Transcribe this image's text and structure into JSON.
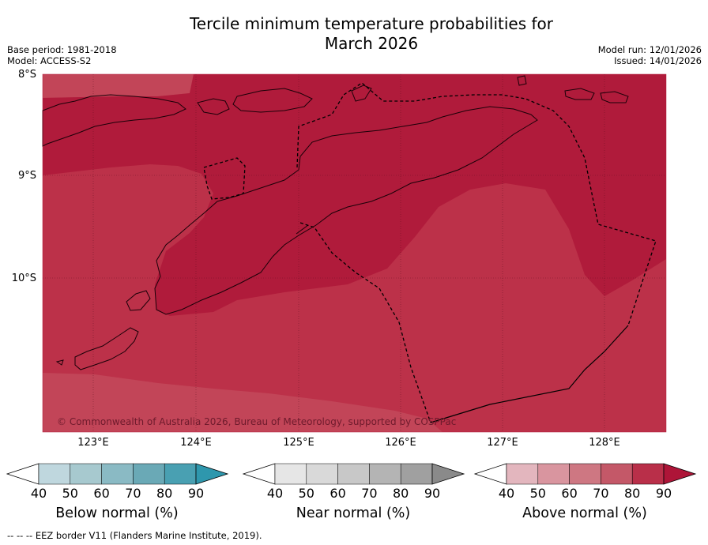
{
  "title_line1": "Tercile minimum temperature probabilities for",
  "title_line2": "March 2026",
  "base_period": "Base period: 1981-2018",
  "model": "Model: ACCESS-S2",
  "model_run": "Model run: 12/01/2026",
  "issued": "Issued: 14/01/2026",
  "lat_labels": [
    "8°S",
    "9°S",
    "10°S"
  ],
  "lon_labels": [
    "123°E",
    "124°E",
    "125°E",
    "126°E",
    "127°E",
    "128°E"
  ],
  "copyright": "© Commonwealth of Australia 2026, Bureau of Meteorology, supported by COSPPac",
  "colorbars": [
    {
      "name": "below-normal",
      "title": "Below normal (%)",
      "ticks": [
        "40",
        "50",
        "60",
        "70",
        "80",
        "90"
      ],
      "colors": [
        "#bfd7de",
        "#a7c9cf",
        "#8abac4",
        "#6aa9b6",
        "#49a0b2",
        "#2e97ad"
      ]
    },
    {
      "name": "near-normal",
      "title": "Near normal (%)",
      "ticks": [
        "40",
        "50",
        "60",
        "70",
        "80",
        "90"
      ],
      "colors": [
        "#e6e6e6",
        "#d9d9d9",
        "#c8c8c8",
        "#b4b4b4",
        "#a0a0a0",
        "#8a8a8a"
      ]
    },
    {
      "name": "above-normal",
      "title": "Above normal (%)",
      "ticks": [
        "40",
        "50",
        "60",
        "70",
        "80",
        "90"
      ],
      "colors": [
        "#e3b6be",
        "#d9959f",
        "#ce7782",
        "#c45868",
        "#b92f49",
        "#ae1538"
      ]
    }
  ],
  "footnote": "--  --  -- EEZ border V11 (Flanders Marine Institute, 2019).",
  "map_colors": {
    "dark": "#b01b3b",
    "medium": "#bc3149",
    "light": "#c24558"
  }
}
